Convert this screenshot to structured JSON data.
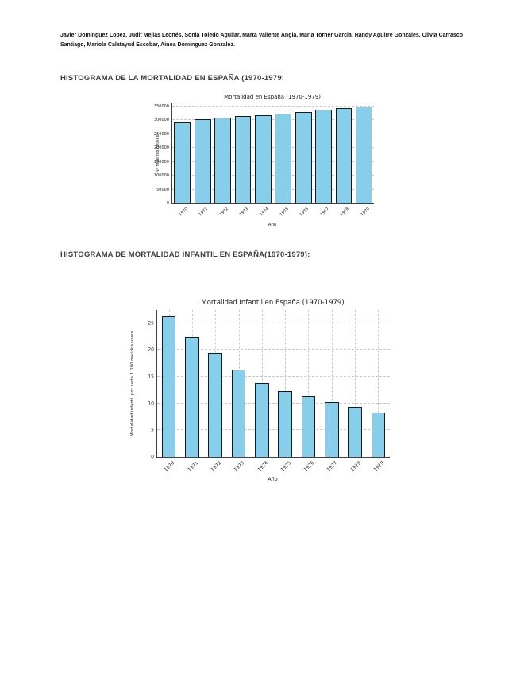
{
  "page": {
    "authors": "Javier Dominguez Lopez, Judit Mejias Leonés, Sonia Toledo Aguilar, Marta Valiente Angla, Maria Torner Garcia, Randy Aguirre Gonzales, Olivia Carrasco Santiago, Mariola Calatayud Escobar, Ainoa Dominguez Gonzalez.",
    "heading_mortality": "HISTOGRAMA DE LA MORTALIDAD EN ESPAÑA (1970-1979:",
    "heading_infant": "HISTOGRAMA DE MORTALIDAD INFANTIL EN ESPAÑA(1970-1979):"
  },
  "chart_data": [
    {
      "type": "bar",
      "title": "Mortalidad en España (1970-1979)",
      "xlabel": "Año",
      "ylabel": "Nº muertes totales",
      "categories": [
        "1970",
        "1971",
        "1972",
        "1973",
        "1974",
        "1975",
        "1976",
        "1977",
        "1978",
        "1979"
      ],
      "values": [
        291000,
        303000,
        309000,
        313000,
        318000,
        323000,
        329000,
        336000,
        343000,
        348000
      ],
      "ylim": [
        0,
        360000
      ],
      "yticks": [
        0,
        50000,
        100000,
        150000,
        200000,
        250000,
        300000,
        350000
      ],
      "grid": true,
      "grid_x": false,
      "bar_color": "#87CEEB",
      "bar_edge_color": "#1a1a1a",
      "grid_color": "#c9c9c9",
      "legend": "none"
    },
    {
      "type": "bar",
      "title": "Mortalidad Infantil en España (1970-1979)",
      "xlabel": "Año",
      "ylabel": "Mortalidad infantil por cada 1.000 nacidos vivos",
      "categories": [
        "1970",
        "1971",
        "1972",
        "1973",
        "1974",
        "1975",
        "1976",
        "1977",
        "1978",
        "1979"
      ],
      "values": [
        26.3,
        22.5,
        19.5,
        16.3,
        13.8,
        12.4,
        11.4,
        10.2,
        9.3,
        8.4
      ],
      "ylim": [
        0,
        27.5
      ],
      "yticks": [
        0,
        5,
        10,
        15,
        20,
        25
      ],
      "grid": true,
      "grid_x": true,
      "bar_color": "#87CEEB",
      "bar_edge_color": "#1a1a1a",
      "grid_color": "#c9c9c9",
      "legend": "none"
    }
  ]
}
